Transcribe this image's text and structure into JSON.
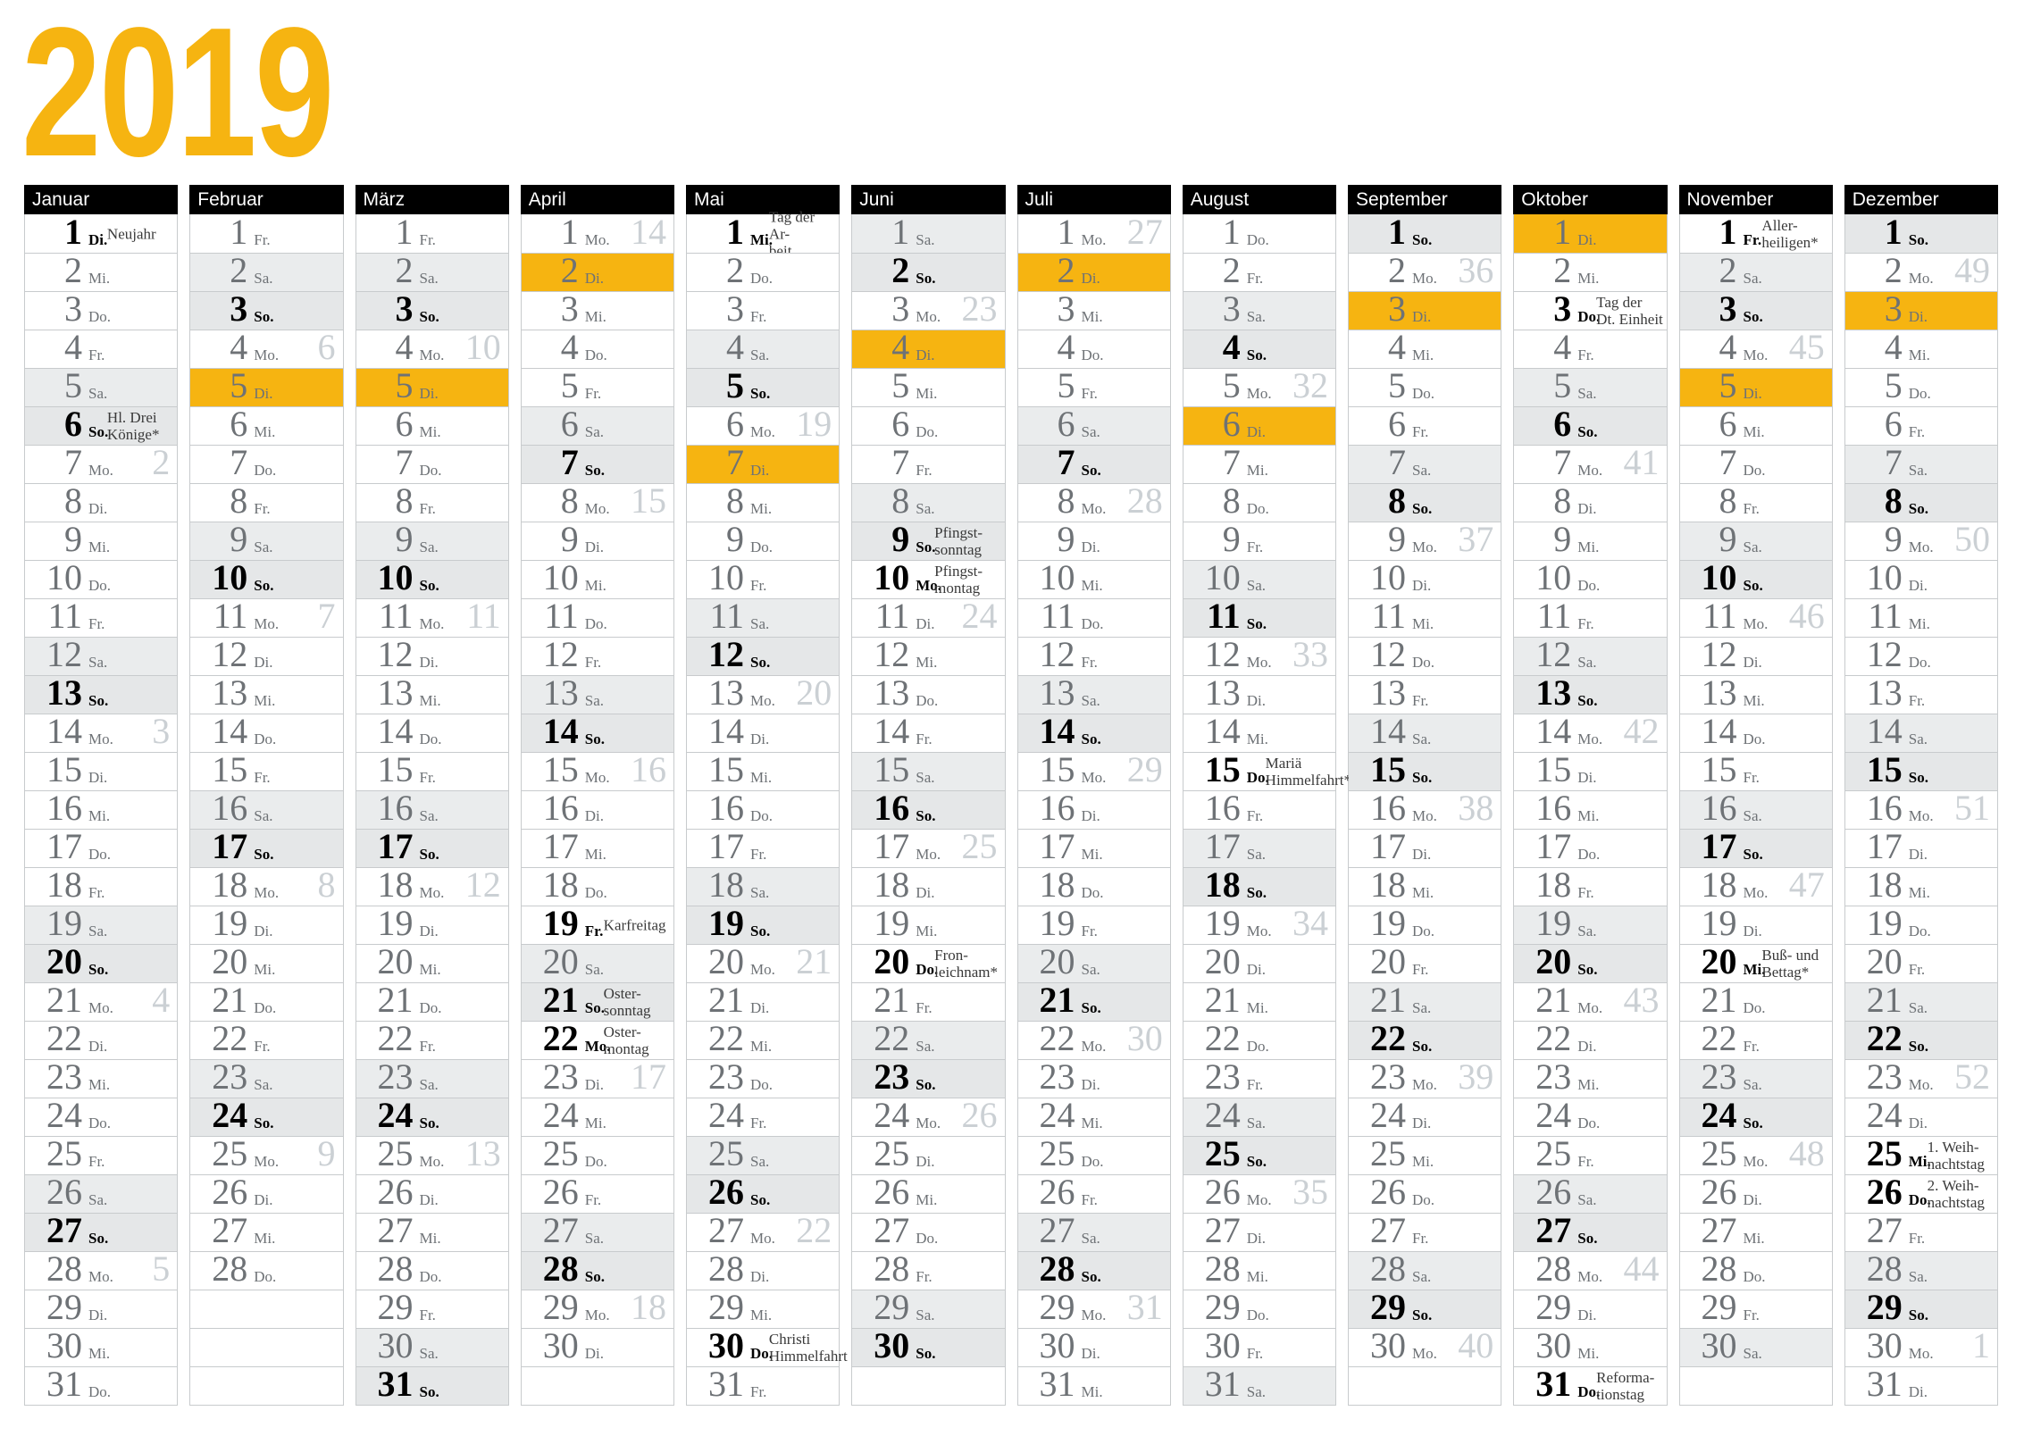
{
  "title": "2019",
  "colors": {
    "accent": "#F6B411",
    "saturday_bg": "#EAECED",
    "sunday_bg": "#E5E7E8",
    "border": "#C8CBCD",
    "day_gray": "#6E7276",
    "week_number_gray": "#CBD0D4",
    "holiday_label": "#3A3A3A",
    "header_bg": "#000000",
    "header_text": "#FFFFFF"
  },
  "weekday_abbreviations": [
    "Mo.",
    "Di.",
    "Mi.",
    "Do.",
    "Fr.",
    "Sa.",
    "So."
  ],
  "months": [
    {
      "name": "Januar",
      "days": 31,
      "first_weekday": 2,
      "week_numbers": {
        "7": 2,
        "14": 3,
        "21": 4,
        "28": 5
      },
      "holidays": {
        "1": [
          "Neujahr"
        ],
        "6": [
          "Hl. Drei",
          "Könige*"
        ]
      },
      "highlighted_day": null
    },
    {
      "name": "Februar",
      "days": 28,
      "first_weekday": 5,
      "week_numbers": {
        "4": 6,
        "11": 7,
        "18": 8,
        "25": 9
      },
      "holidays": {},
      "highlighted_day": 5
    },
    {
      "name": "März",
      "days": 31,
      "first_weekday": 5,
      "week_numbers": {
        "4": 10,
        "11": 11,
        "18": 12,
        "25": 13
      },
      "holidays": {},
      "highlighted_day": 5
    },
    {
      "name": "April",
      "days": 30,
      "first_weekday": 1,
      "week_numbers": {
        "1": 14,
        "8": 15,
        "15": 16,
        "23": 17,
        "29": 18
      },
      "holidays": {
        "19": [
          "Karfreitag"
        ],
        "21": [
          "Oster-",
          "sonntag"
        ],
        "22": [
          "Oster-",
          "montag"
        ]
      },
      "highlighted_day": 2
    },
    {
      "name": "Mai",
      "days": 31,
      "first_weekday": 3,
      "week_numbers": {
        "6": 19,
        "13": 20,
        "20": 21,
        "27": 22
      },
      "holidays": {
        "1": [
          "Tag der Ar-",
          "beit"
        ],
        "30": [
          "Christi",
          "Himmelfahrt"
        ]
      },
      "highlighted_day": 7
    },
    {
      "name": "Juni",
      "days": 30,
      "first_weekday": 6,
      "week_numbers": {
        "3": 23,
        "11": 24,
        "17": 25,
        "24": 26
      },
      "holidays": {
        "9": [
          "Pfingst-",
          "sonntag"
        ],
        "10": [
          "Pfingst-",
          "montag"
        ],
        "20": [
          "Fron-",
          "leichnam*"
        ]
      },
      "highlighted_day": 4
    },
    {
      "name": "Juli",
      "days": 31,
      "first_weekday": 1,
      "week_numbers": {
        "1": 27,
        "8": 28,
        "15": 29,
        "22": 30,
        "29": 31
      },
      "holidays": {},
      "highlighted_day": 2
    },
    {
      "name": "August",
      "days": 31,
      "first_weekday": 4,
      "week_numbers": {
        "5": 32,
        "12": 33,
        "19": 34,
        "26": 35
      },
      "holidays": {
        "15": [
          "Mariä",
          "Himmelfahrt*"
        ]
      },
      "highlighted_day": 6
    },
    {
      "name": "September",
      "days": 30,
      "first_weekday": 7,
      "week_numbers": {
        "2": 36,
        "9": 37,
        "16": 38,
        "23": 39,
        "30": 40
      },
      "holidays": {},
      "highlighted_day": 3
    },
    {
      "name": "Oktober",
      "days": 31,
      "first_weekday": 2,
      "week_numbers": {
        "7": 41,
        "14": 42,
        "21": 43,
        "28": 44
      },
      "holidays": {
        "3": [
          "Tag der",
          "Dt. Einheit"
        ],
        "31": [
          "Reforma-",
          "tionstag"
        ]
      },
      "highlighted_day": 1
    },
    {
      "name": "November",
      "days": 30,
      "first_weekday": 5,
      "week_numbers": {
        "4": 45,
        "11": 46,
        "18": 47,
        "25": 48
      },
      "holidays": {
        "1": [
          "Aller-",
          "heiligen*"
        ],
        "20": [
          "Buß- und",
          "Bettag*"
        ]
      },
      "highlighted_day": 5
    },
    {
      "name": "Dezember",
      "days": 31,
      "first_weekday": 7,
      "week_numbers": {
        "2": 49,
        "9": 50,
        "16": 51,
        "23": 52,
        "30": 1
      },
      "holidays": {
        "25": [
          "1. Weih-",
          "nachtstag"
        ],
        "26": [
          "2. Weih-",
          "nachtstag"
        ]
      },
      "highlighted_day": 3
    }
  ]
}
